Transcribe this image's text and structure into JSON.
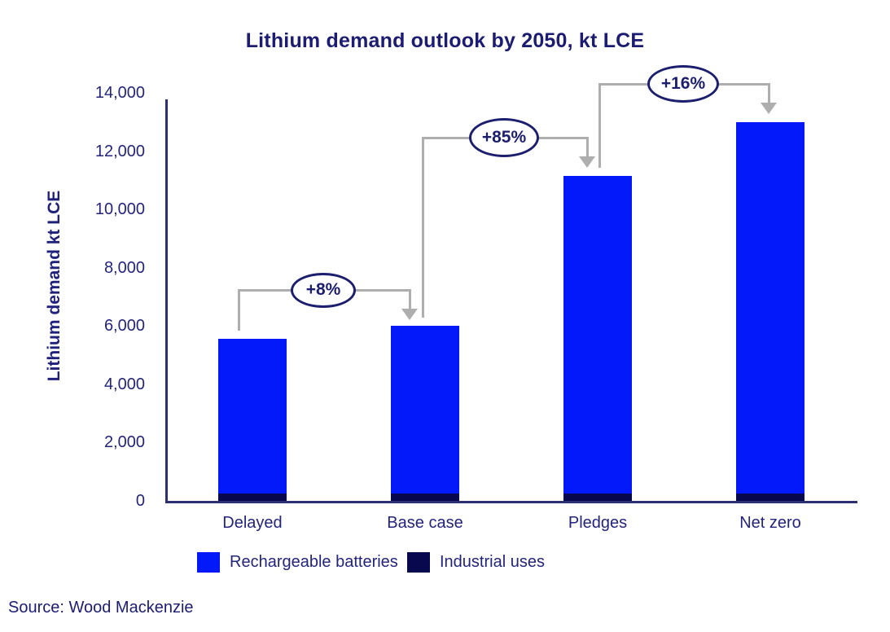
{
  "chart_data": {
    "type": "bar",
    "stacked": true,
    "title": "Lithium demand outlook by 2050, kt LCE",
    "y_axis_label": "Lithium demand kt LCE",
    "categories": [
      "Delayed",
      "Base case",
      "Pledges",
      "Net zero"
    ],
    "series": [
      {
        "name": "Rechargeable batteries",
        "color": "#0419fa",
        "values": [
          5300,
          5750,
          10900,
          12750
        ]
      },
      {
        "name": "Industrial uses",
        "color": "#08084e",
        "values": [
          250,
          250,
          250,
          250
        ]
      }
    ],
    "totals": [
      5550,
      6000,
      11150,
      13000
    ],
    "annotations": [
      {
        "label": "+8%",
        "from": "Delayed",
        "to": "Base case"
      },
      {
        "label": "+85%",
        "from": "Base case",
        "to": "Pledges"
      },
      {
        "label": "+16%",
        "from": "Pledges",
        "to": "Net zero"
      }
    ],
    "ylim": [
      0,
      14000
    ],
    "y_ticks": [
      0,
      2000,
      4000,
      6000,
      8000,
      10000,
      12000,
      14000
    ],
    "y_tick_labels": [
      "0",
      "2,000",
      "4,000",
      "6,000",
      "8,000",
      "10,000",
      "12,000",
      "14,000"
    ],
    "grid": false,
    "legend_position": "bottom"
  },
  "source_note": "Source: Wood Mackenzie",
  "colors": {
    "bar_blue": "#0419fa",
    "bar_navy": "#08084e",
    "text_navy": "#23247c",
    "axis_navy": "#2c2f72",
    "connector_gray": "#aeaeae",
    "background": "#ffffff"
  }
}
